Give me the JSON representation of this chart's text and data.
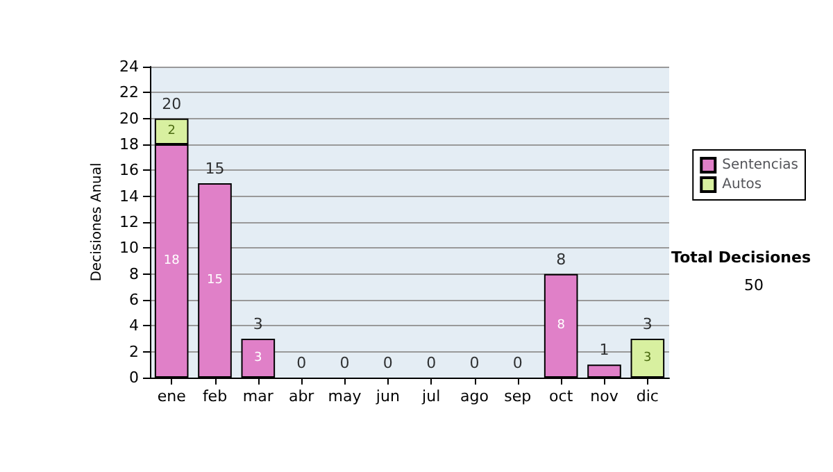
{
  "chart_data": {
    "type": "bar",
    "stacked": true,
    "ylabel": "Decisiones Anual",
    "categories": [
      "ene",
      "feb",
      "mar",
      "abr",
      "may",
      "jun",
      "jul",
      "ago",
      "sep",
      "oct",
      "nov",
      "dic"
    ],
    "series": [
      {
        "name": "Sentencias",
        "color": "#e080c8",
        "values": [
          18,
          15,
          3,
          0,
          0,
          0,
          0,
          0,
          0,
          8,
          1,
          0
        ],
        "value_labels": [
          "18",
          "15",
          "3",
          null,
          null,
          null,
          null,
          null,
          null,
          "8",
          null,
          null
        ]
      },
      {
        "name": "Autos",
        "color": "#d8f0a0",
        "values": [
          2,
          0,
          0,
          0,
          0,
          0,
          0,
          0,
          0,
          0,
          0,
          3
        ],
        "value_labels": [
          "2",
          null,
          null,
          null,
          null,
          null,
          null,
          null,
          null,
          null,
          null,
          "3"
        ]
      }
    ],
    "totals": [
      "20",
      "15",
      "3",
      "0",
      "0",
      "0",
      "0",
      "0",
      "0",
      "8",
      "1",
      "3"
    ],
    "ylim": [
      0,
      24
    ],
    "yticks": [
      0,
      2,
      4,
      6,
      8,
      10,
      12,
      14,
      16,
      18,
      20,
      22,
      24
    ],
    "grid": "y",
    "legend": "right",
    "annotations": [
      "Total Decisiones",
      "50"
    ]
  }
}
